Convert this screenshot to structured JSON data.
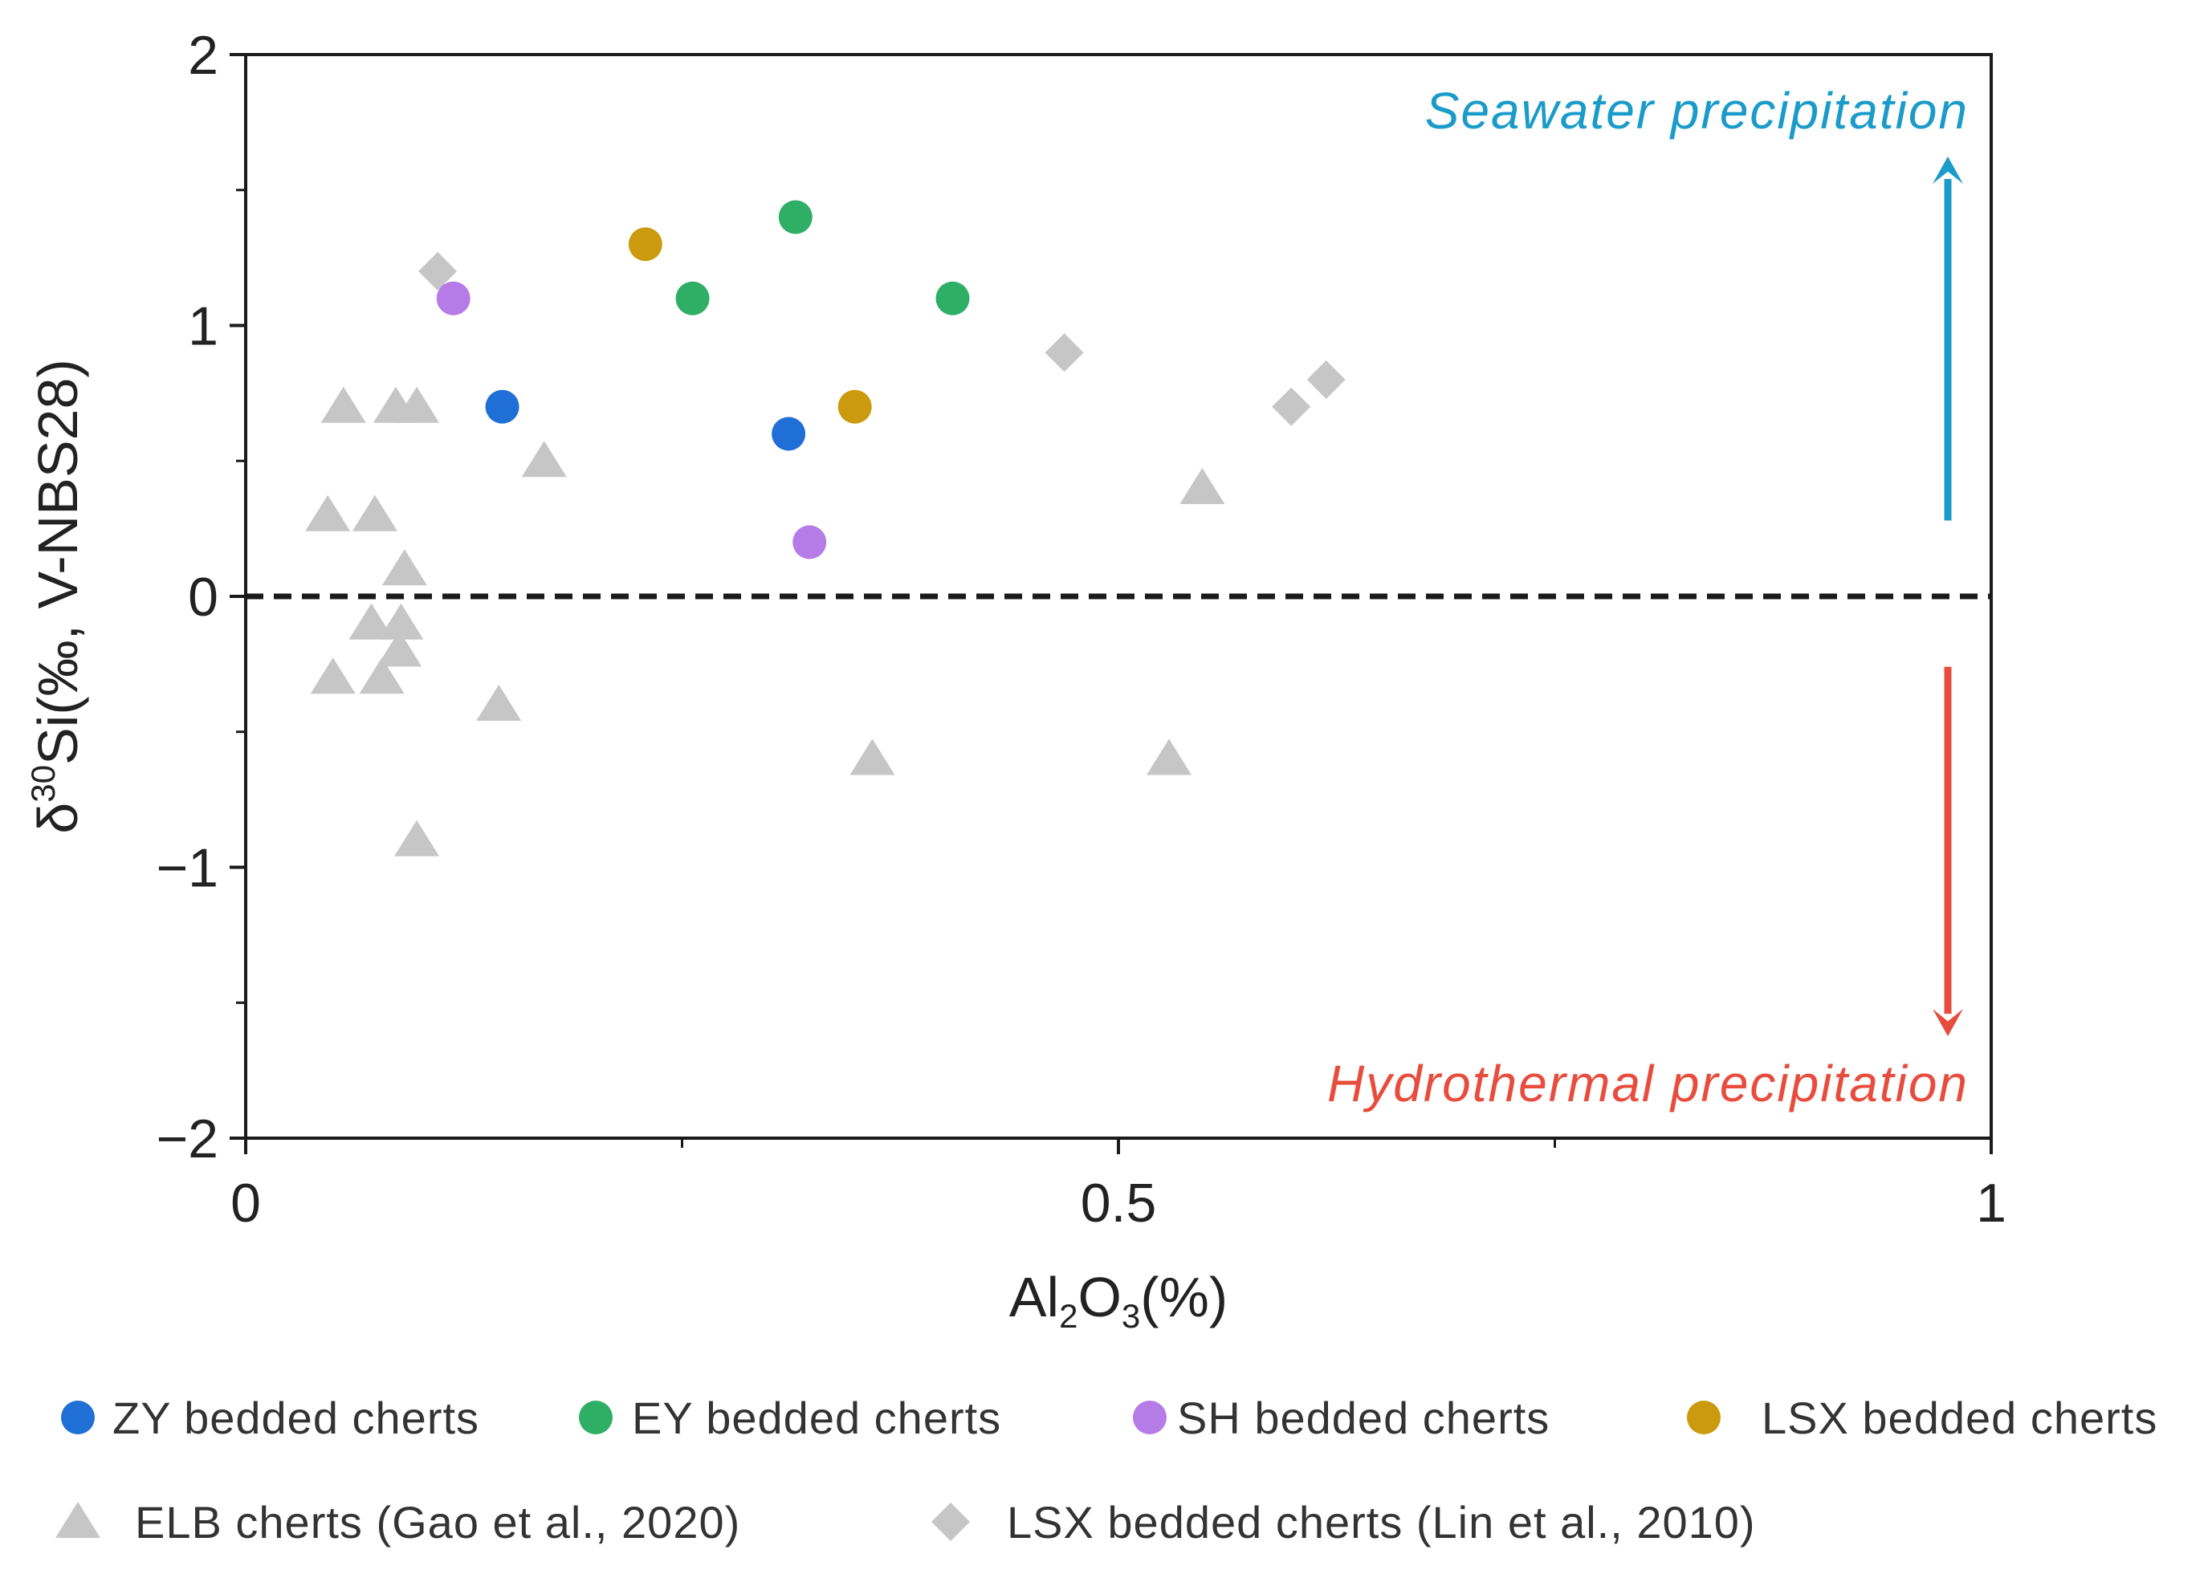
{
  "chart_data": {
    "type": "scatter",
    "xlabel": {
      "main1": "Al",
      "sub1": "2",
      "main2": "O",
      "sub2": "3",
      "main3": "(%)"
    },
    "ylabel": {
      "pre": "δ",
      "sup": "30",
      "main": "Si(‰, V-NBS28)"
    },
    "xlim": [
      0,
      1
    ],
    "ylim": [
      -2,
      2
    ],
    "xticks": [
      {
        "value": 0,
        "label": "0"
      },
      {
        "value": 0.5,
        "label": "0.5"
      },
      {
        "value": 1,
        "label": "1"
      }
    ],
    "yticks": [
      {
        "value": 2,
        "label": "2"
      },
      {
        "value": 1,
        "label": "1"
      },
      {
        "value": 0,
        "label": "0"
      },
      {
        "value": -1,
        "label": "−1"
      },
      {
        "value": -2,
        "label": "−2"
      }
    ],
    "x_minor_ticks": [
      0.25,
      0.75
    ],
    "y_minor_ticks": [
      1.5,
      0.5,
      -0.5,
      -1.5
    ],
    "reference_line": {
      "y": 0,
      "style": "dashed"
    },
    "annotations": [
      {
        "text": "Seawater precipitation",
        "color": "#1a9bc9",
        "arrow": "up",
        "arrow_from": 0.28,
        "arrow_to": 1.6
      },
      {
        "text": "Hydrothermal precipitation",
        "color": "#e84c3d",
        "arrow": "down",
        "arrow_from": -0.26,
        "arrow_to": -1.6
      }
    ],
    "series": [
      {
        "name": "ZY bedded cherts",
        "marker": "circle",
        "color": "#1f6fd6",
        "points": [
          {
            "x": 0.147,
            "y": 0.7
          },
          {
            "x": 0.311,
            "y": 0.6
          }
        ]
      },
      {
        "name": "EY bedded cherts",
        "marker": "circle",
        "color": "#2fae66",
        "points": [
          {
            "x": 0.315,
            "y": 1.4
          },
          {
            "x": 0.256,
            "y": 1.1
          },
          {
            "x": 0.405,
            "y": 1.1
          }
        ]
      },
      {
        "name": "SH bedded cherts",
        "marker": "circle",
        "color": "#b57be6",
        "points": [
          {
            "x": 0.119,
            "y": 1.1
          },
          {
            "x": 0.323,
            "y": 0.2
          }
        ]
      },
      {
        "name": "LSX bedded cherts",
        "marker": "circle",
        "color": "#cc9a0e",
        "points": [
          {
            "x": 0.229,
            "y": 1.3
          },
          {
            "x": 0.349,
            "y": 0.7
          }
        ]
      },
      {
        "name": "ELB cherts (Gao et al., 2020)",
        "marker": "triangle",
        "color": "#c6c6c6",
        "points": [
          {
            "x": 0.056,
            "y": 0.7
          },
          {
            "x": 0.086,
            "y": 0.7
          },
          {
            "x": 0.098,
            "y": 0.7
          },
          {
            "x": 0.171,
            "y": 0.5
          },
          {
            "x": 0.047,
            "y": 0.3
          },
          {
            "x": 0.074,
            "y": 0.3
          },
          {
            "x": 0.091,
            "y": 0.1
          },
          {
            "x": 0.072,
            "y": -0.1
          },
          {
            "x": 0.089,
            "y": -0.1
          },
          {
            "x": 0.088,
            "y": -0.2
          },
          {
            "x": 0.05,
            "y": -0.3
          },
          {
            "x": 0.078,
            "y": -0.3
          },
          {
            "x": 0.145,
            "y": -0.4
          },
          {
            "x": 0.359,
            "y": -0.6
          },
          {
            "x": 0.529,
            "y": -0.6
          },
          {
            "x": 0.098,
            "y": -0.9
          },
          {
            "x": 0.548,
            "y": 0.4
          }
        ]
      },
      {
        "name": "LSX bedded cherts (Lin et al., 2010)",
        "marker": "diamond",
        "color": "#c6c6c6",
        "points": [
          {
            "x": 0.11,
            "y": 1.2
          },
          {
            "x": 0.469,
            "y": 0.9
          },
          {
            "x": 0.599,
            "y": 0.7
          },
          {
            "x": 0.619,
            "y": 0.8
          }
        ]
      }
    ],
    "legend_position": "bottom"
  }
}
